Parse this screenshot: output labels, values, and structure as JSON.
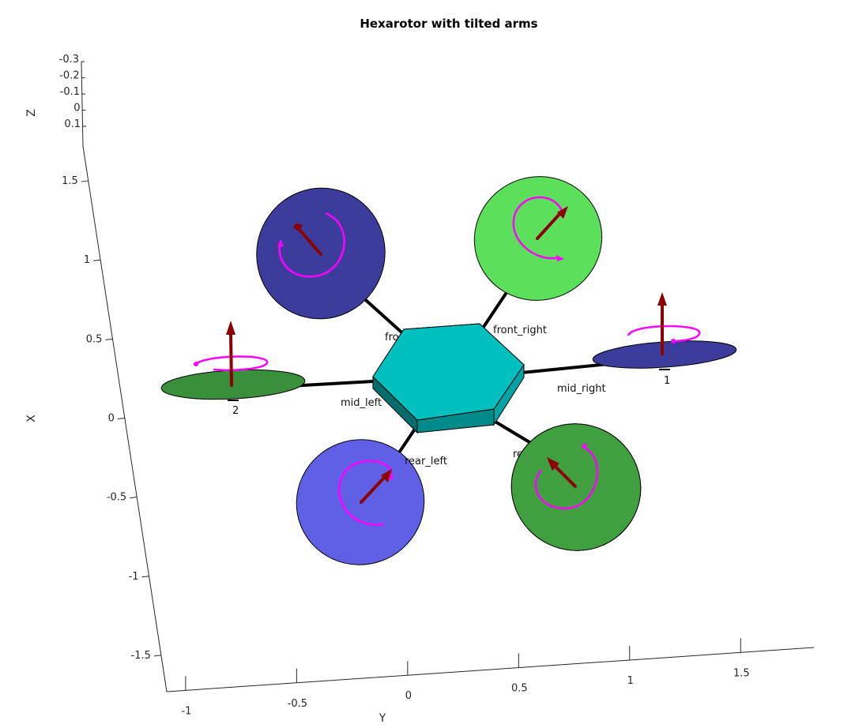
{
  "chart_data": {
    "type": "3d-scene",
    "title": "Hexarotor with tilted arms",
    "xlabel": "X",
    "ylabel": "Y",
    "zlabel": "Z",
    "x_ticks": [
      "-1.5",
      "-1",
      "-0.5",
      "0",
      "0.5",
      "1",
      "1.5"
    ],
    "y_ticks": [
      "-1",
      "-0.5",
      "0",
      "0.5",
      "1",
      "1.5"
    ],
    "z_ticks": [
      "-0.3",
      "-0.2",
      "-0.1",
      "0",
      "0.1"
    ],
    "body": {
      "shape": "hexagonal prism",
      "color": "#00bfbf"
    },
    "rotors": [
      {
        "arm": "front_left",
        "label": "front_left",
        "color": "#3c3c9c",
        "spin": "ccw"
      },
      {
        "arm": "front_right",
        "label": "front_right",
        "color": "#5ce05c",
        "spin": "cw"
      },
      {
        "arm": "mid_right",
        "label": "mid_right",
        "color": "#3c3c9c",
        "spin": "ccw",
        "number": "1"
      },
      {
        "arm": "rear_right",
        "label": "rear_right",
        "color": "#40a040",
        "spin": "cw"
      },
      {
        "arm": "rear_left",
        "label": "rear_left",
        "color": "#6060e6",
        "spin": "ccw"
      },
      {
        "arm": "mid_left",
        "label": "mid_left",
        "color": "#3a8f3a",
        "spin": "cw",
        "number": "2"
      }
    ],
    "colors": {
      "thrust_arrow": "#8b0000",
      "spin_indicator": "#ff00ff",
      "arm": "#000000"
    }
  }
}
